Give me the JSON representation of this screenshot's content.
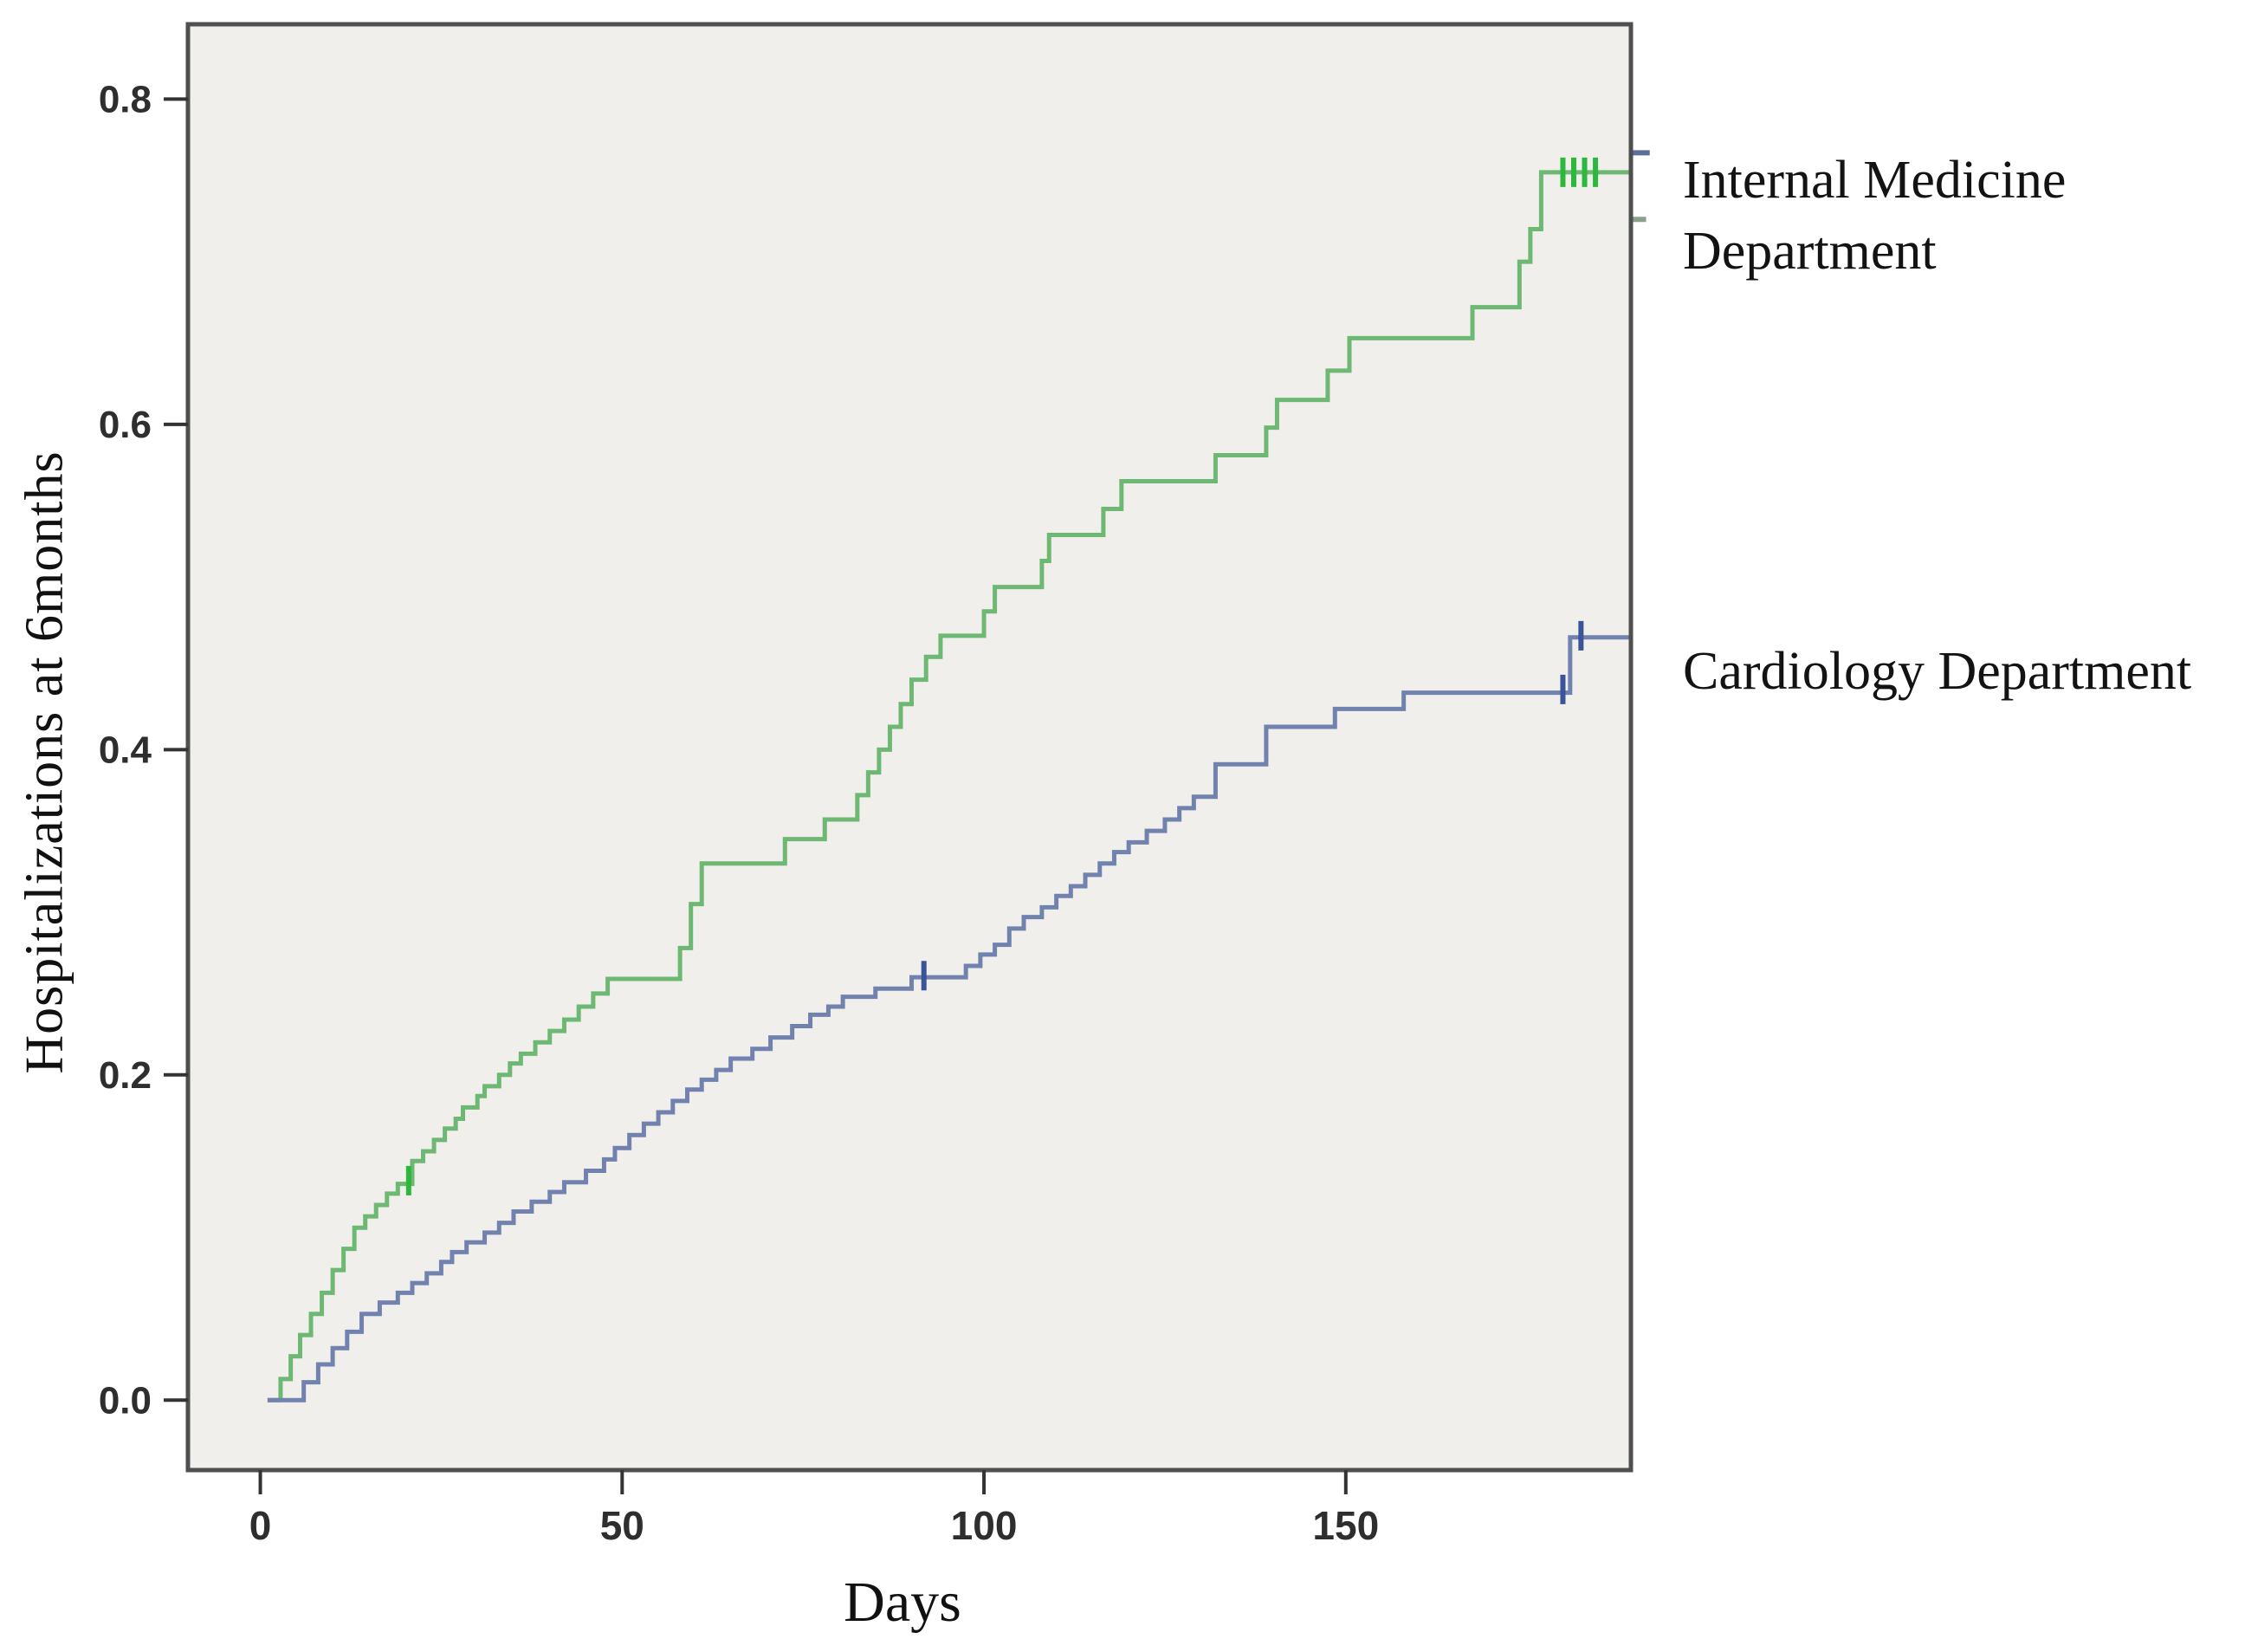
{
  "figure": {
    "y_axis_title": "Hospitalizations at 6months",
    "x_axis_title": "Days",
    "legend": {
      "internal_medicine_line1": "Internal Medicine",
      "internal_medicine_line2": "Department",
      "cardiology_label": "Cardiology Department"
    }
  },
  "chart_data": {
    "type": "line",
    "subtype": "kaplan-meier-cumulative-incidence-steps",
    "title": "",
    "xlabel": "Days",
    "ylabel": "Hospitalizations at 6months",
    "xlim": [
      -10,
      189.4
    ],
    "ylim": [
      -0.043,
      0.846
    ],
    "grid": false,
    "legend_position": "right-outside",
    "plot_bg": "#f0efec",
    "frame_color": "#4f4f4f",
    "tick_color": "#333333",
    "x_ticks": [
      {
        "v": 0,
        "label": "0"
      },
      {
        "v": 50,
        "label": "50"
      },
      {
        "v": 100,
        "label": "100"
      },
      {
        "v": 150,
        "label": "150"
      }
    ],
    "y_ticks": [
      {
        "v": 0.0,
        "label": "0.0"
      },
      {
        "v": 0.2,
        "label": "0.2"
      },
      {
        "v": 0.4,
        "label": "0.4"
      },
      {
        "v": 0.6,
        "label": "0.6"
      },
      {
        "v": 0.8,
        "label": "0.8"
      }
    ],
    "series": [
      {
        "name": "Internal Medicine Department",
        "color": "#6db873",
        "censor_color": "#2db83d",
        "start_day": 1,
        "end_day": 189.4,
        "steps": [
          [
            2.8,
            0.013
          ],
          [
            4.2,
            0.027
          ],
          [
            5.5,
            0.04
          ],
          [
            7,
            0.053
          ],
          [
            8.5,
            0.066
          ],
          [
            10,
            0.08
          ],
          [
            11.5,
            0.093
          ],
          [
            13,
            0.106
          ],
          [
            14.5,
            0.113
          ],
          [
            16,
            0.12
          ],
          [
            17.5,
            0.127
          ],
          [
            19,
            0.133
          ],
          [
            21,
            0.147
          ],
          [
            22.5,
            0.153
          ],
          [
            24,
            0.16
          ],
          [
            25.5,
            0.167
          ],
          [
            27,
            0.173
          ],
          [
            28,
            0.18
          ],
          [
            30,
            0.187
          ],
          [
            31,
            0.193
          ],
          [
            33,
            0.2
          ],
          [
            34.5,
            0.207
          ],
          [
            36,
            0.213
          ],
          [
            38,
            0.22
          ],
          [
            40,
            0.227
          ],
          [
            42,
            0.234
          ],
          [
            44,
            0.242
          ],
          [
            46,
            0.25
          ],
          [
            48,
            0.259
          ],
          [
            58,
            0.278
          ],
          [
            59.5,
            0.305
          ],
          [
            61,
            0.33
          ],
          [
            72.5,
            0.345
          ],
          [
            78,
            0.357
          ],
          [
            82.5,
            0.372
          ],
          [
            84,
            0.386
          ],
          [
            85.5,
            0.4
          ],
          [
            87,
            0.414
          ],
          [
            88.5,
            0.428
          ],
          [
            90,
            0.443
          ],
          [
            92,
            0.457
          ],
          [
            94,
            0.47
          ],
          [
            100,
            0.485
          ],
          [
            101.5,
            0.5
          ],
          [
            108,
            0.516
          ],
          [
            109,
            0.532
          ],
          [
            116.5,
            0.548
          ],
          [
            119,
            0.565
          ],
          [
            132,
            0.581
          ],
          [
            139,
            0.598
          ],
          [
            140.5,
            0.615
          ],
          [
            147.5,
            0.633
          ],
          [
            150.5,
            0.653
          ],
          [
            167.5,
            0.672
          ],
          [
            174,
            0.7
          ],
          [
            175.5,
            0.72
          ],
          [
            177,
            0.755
          ]
        ],
        "censors": [
          [
            20.5,
            0.135
          ],
          [
            180,
            0.755
          ],
          [
            181.5,
            0.755
          ],
          [
            183,
            0.755
          ],
          [
            184.5,
            0.755
          ]
        ]
      },
      {
        "name": "Cardiology Department",
        "color": "#7282ae",
        "censor_color": "#3b5398",
        "start_day": 1,
        "end_day": 189.4,
        "steps": [
          [
            6,
            0.011
          ],
          [
            8,
            0.022
          ],
          [
            10,
            0.032
          ],
          [
            12,
            0.042
          ],
          [
            14,
            0.053
          ],
          [
            16.5,
            0.06
          ],
          [
            19,
            0.066
          ],
          [
            21,
            0.072
          ],
          [
            23,
            0.078
          ],
          [
            25,
            0.085
          ],
          [
            26.5,
            0.091
          ],
          [
            28.5,
            0.097
          ],
          [
            31,
            0.103
          ],
          [
            33,
            0.109
          ],
          [
            35,
            0.116
          ],
          [
            37.5,
            0.122
          ],
          [
            40,
            0.128
          ],
          [
            42,
            0.134
          ],
          [
            45,
            0.141
          ],
          [
            47.5,
            0.148
          ],
          [
            49,
            0.155
          ],
          [
            51,
            0.163
          ],
          [
            53,
            0.17
          ],
          [
            55,
            0.177
          ],
          [
            57,
            0.184
          ],
          [
            59,
            0.191
          ],
          [
            61,
            0.197
          ],
          [
            63,
            0.203
          ],
          [
            65,
            0.21
          ],
          [
            68,
            0.216
          ],
          [
            70.5,
            0.223
          ],
          [
            73.5,
            0.23
          ],
          [
            76,
            0.237
          ],
          [
            78.5,
            0.242
          ],
          [
            80.5,
            0.248
          ],
          [
            85,
            0.253
          ],
          [
            90,
            0.26
          ],
          [
            97.5,
            0.267
          ],
          [
            99.5,
            0.274
          ],
          [
            101.5,
            0.28
          ],
          [
            103.5,
            0.29
          ],
          [
            105.5,
            0.297
          ],
          [
            108,
            0.303
          ],
          [
            110,
            0.31
          ],
          [
            112,
            0.316
          ],
          [
            114,
            0.323
          ],
          [
            116,
            0.33
          ],
          [
            118,
            0.337
          ],
          [
            120,
            0.343
          ],
          [
            122.5,
            0.35
          ],
          [
            125,
            0.357
          ],
          [
            127,
            0.364
          ],
          [
            129,
            0.371
          ],
          [
            132,
            0.391
          ],
          [
            139,
            0.414
          ],
          [
            148.5,
            0.425
          ],
          [
            158,
            0.435
          ],
          [
            181,
            0.469
          ]
        ],
        "censors": [
          [
            91.7,
            0.261
          ],
          [
            180,
            0.437
          ],
          [
            182.5,
            0.47
          ]
        ]
      }
    ],
    "edge_marks": [
      {
        "day_from": 189.5,
        "day_to": 192.0,
        "v": 0.767,
        "color": "#5c6e9a"
      },
      {
        "day_from": 189.5,
        "day_to": 191.5,
        "v": 0.726,
        "color": "#8aa08c"
      }
    ]
  }
}
